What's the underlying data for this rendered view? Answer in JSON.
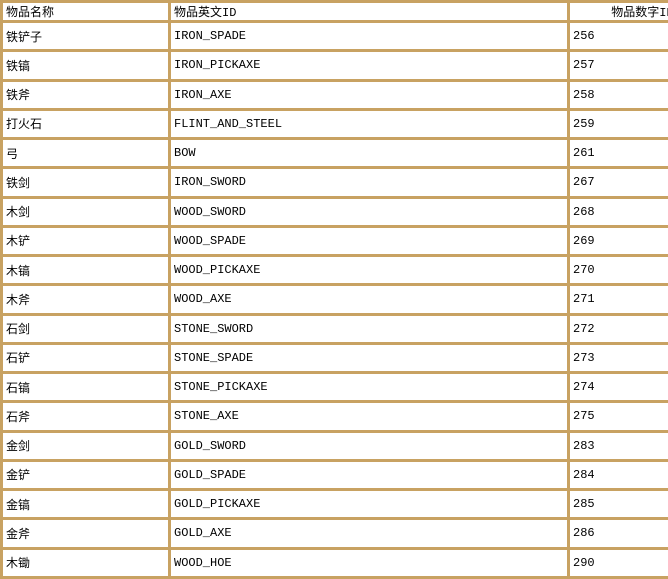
{
  "table": {
    "style": {
      "border_color": "#C8A262",
      "cell_background": "#FFFFFF",
      "text_color": "#000000"
    },
    "columns": [
      {
        "key": "name",
        "label": "物品名称"
      },
      {
        "key": "id",
        "label": "物品英文ID"
      },
      {
        "key": "num",
        "label": "物品数字ID"
      }
    ],
    "rows": [
      {
        "name": "铁铲子",
        "id": "IRON_SPADE",
        "num": "256"
      },
      {
        "name": "铁镐",
        "id": "IRON_PICKAXE",
        "num": "257"
      },
      {
        "name": "铁斧",
        "id": "IRON_AXE",
        "num": "258"
      },
      {
        "name": "打火石",
        "id": "FLINT_AND_STEEL",
        "num": "259"
      },
      {
        "name": "弓",
        "id": "BOW",
        "num": "261"
      },
      {
        "name": "铁剑",
        "id": "IRON_SWORD",
        "num": "267"
      },
      {
        "name": "木剑",
        "id": "WOOD_SWORD",
        "num": "268"
      },
      {
        "name": "木铲",
        "id": "WOOD_SPADE",
        "num": "269"
      },
      {
        "name": "木镐",
        "id": "WOOD_PICKAXE",
        "num": "270"
      },
      {
        "name": "木斧",
        "id": "WOOD_AXE",
        "num": "271"
      },
      {
        "name": "石剑",
        "id": "STONE_SWORD",
        "num": "272"
      },
      {
        "name": "石铲",
        "id": "STONE_SPADE",
        "num": "273"
      },
      {
        "name": "石镐",
        "id": "STONE_PICKAXE",
        "num": "274"
      },
      {
        "name": "石斧",
        "id": "STONE_AXE",
        "num": "275"
      },
      {
        "name": "金剑",
        "id": "GOLD_SWORD",
        "num": "283"
      },
      {
        "name": "金铲",
        "id": "GOLD_SPADE",
        "num": "284"
      },
      {
        "name": "金镐",
        "id": "GOLD_PICKAXE",
        "num": "285"
      },
      {
        "name": "金斧",
        "id": "GOLD_AXE",
        "num": "286"
      },
      {
        "name": "木锄",
        "id": "WOOD_HOE",
        "num": "290"
      }
    ]
  }
}
